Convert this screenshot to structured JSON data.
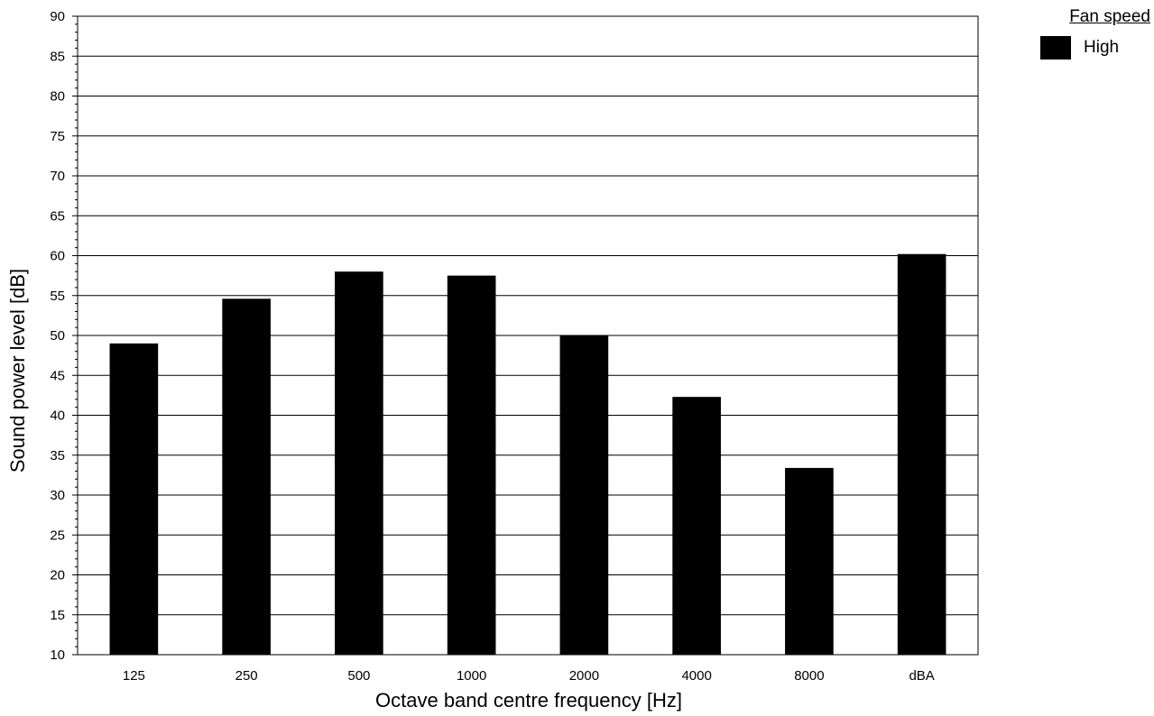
{
  "chart_data": {
    "type": "bar",
    "title": "",
    "xlabel": "Octave band centre frequency [Hz]",
    "ylabel": "Sound power level [dB]",
    "categories": [
      "125",
      "250",
      "500",
      "1000",
      "2000",
      "4000",
      "8000",
      "dBA"
    ],
    "series": [
      {
        "name": "High",
        "values": [
          49,
          54.6,
          58,
          57.5,
          50,
          42.3,
          33.4,
          60.2
        ],
        "color": "#000000"
      }
    ],
    "ylim": [
      10,
      90
    ],
    "ytick_step": 5,
    "yticks": [
      "10",
      "15",
      "20",
      "25",
      "30",
      "35",
      "40",
      "45",
      "50",
      "55",
      "60",
      "65",
      "70",
      "75",
      "80",
      "85",
      "90"
    ],
    "grid": "horizontal",
    "legend": {
      "title": "Fan speed",
      "placement": "top-right"
    }
  }
}
